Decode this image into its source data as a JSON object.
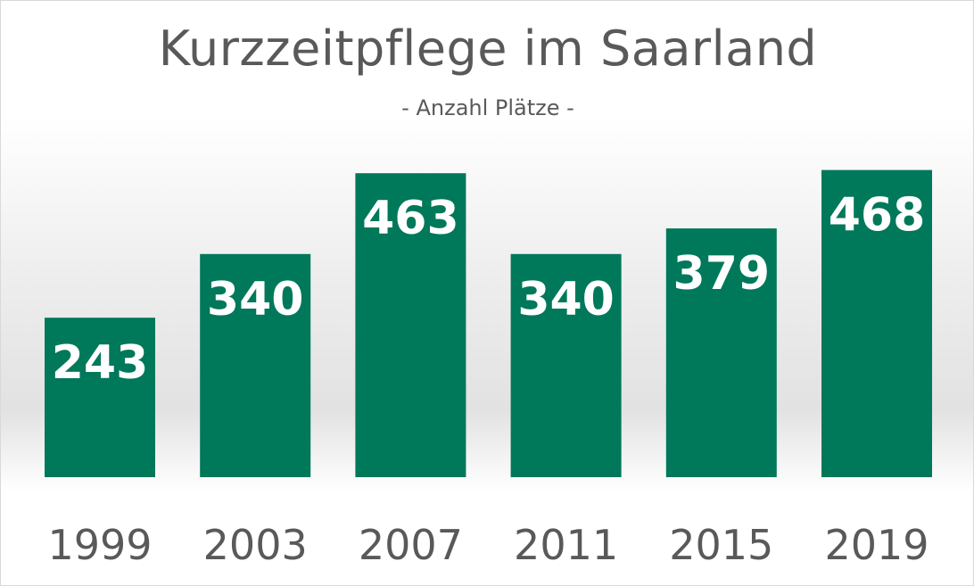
{
  "chart_data": {
    "type": "bar",
    "title": "Kurzzeitpflege im Saarland",
    "subtitle": "- Anzahl Plätze -",
    "categories": [
      "1999",
      "2003",
      "2007",
      "2011",
      "2015",
      "2019"
    ],
    "values": [
      243,
      340,
      463,
      340,
      379,
      468
    ],
    "data_labels": [
      "243",
      "340",
      "463",
      "340",
      "379",
      "468"
    ],
    "xlabel": "",
    "ylabel": "",
    "ylim": [
      0,
      500
    ],
    "grid": false,
    "legend": "none",
    "bar_color": "#00785A"
  }
}
